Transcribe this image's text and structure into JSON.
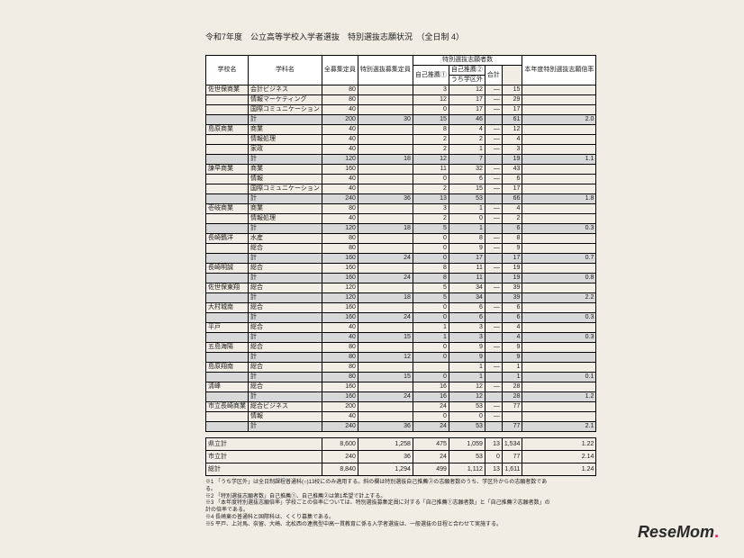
{
  "title": "令和7年度　公立高等学校入学者選抜　特別選抜志願状況　（全日制 4）",
  "header": {
    "school": "学校名",
    "dept": "学科名",
    "capacity": "全募集定員",
    "special_capacity": "特別選抜募集定員",
    "applicants_group": "特別選抜志願者数",
    "a1": "自己推薦①",
    "a2": "自己推薦②",
    "a2sub": "うち学区外",
    "gokei": "合計",
    "prev": "本年度特別選抜志願倍率"
  },
  "rows": [
    {
      "school": "佐世保商業",
      "dept": "会計ビジネス",
      "c": "80",
      "sc": "",
      "a1": "3",
      "a2": "12",
      "a2s": "—",
      "g": "15",
      "p": ""
    },
    {
      "school": "",
      "dept": "情報マーケティング",
      "c": "80",
      "sc": "",
      "a1": "12",
      "a2": "17",
      "a2s": "—",
      "g": "29",
      "p": ""
    },
    {
      "school": "",
      "dept": "国際コミュニケーション",
      "c": "40",
      "sc": "",
      "a1": "0",
      "a2": "17",
      "a2s": "—",
      "g": "17",
      "p": ""
    },
    {
      "school": "",
      "dept": "計",
      "c": "200",
      "sc": "30",
      "a1": "15",
      "a2": "46",
      "a2s": "",
      "g": "61",
      "p": "2.0",
      "subtotal": true
    },
    {
      "school": "島原商業",
      "dept": "商業",
      "c": "40",
      "sc": "",
      "a1": "8",
      "a2": "4",
      "a2s": "—",
      "g": "12",
      "p": ""
    },
    {
      "school": "",
      "dept": "情報処理",
      "c": "40",
      "sc": "",
      "a1": "2",
      "a2": "2",
      "a2s": "—",
      "g": "4",
      "p": ""
    },
    {
      "school": "",
      "dept": "家政",
      "c": "40",
      "sc": "",
      "a1": "2",
      "a2": "1",
      "a2s": "—",
      "g": "3",
      "p": ""
    },
    {
      "school": "",
      "dept": "計",
      "c": "120",
      "sc": "18",
      "a1": "12",
      "a2": "7",
      "a2s": "",
      "g": "19",
      "p": "1.1",
      "subtotal": true
    },
    {
      "school": "諫早商業",
      "dept": "商業",
      "c": "160",
      "sc": "",
      "a1": "11",
      "a2": "32",
      "a2s": "—",
      "g": "43",
      "p": ""
    },
    {
      "school": "",
      "dept": "情報",
      "c": "40",
      "sc": "",
      "a1": "0",
      "a2": "6",
      "a2s": "—",
      "g": "6",
      "p": ""
    },
    {
      "school": "",
      "dept": "国際コミュニケーション",
      "c": "40",
      "sc": "",
      "a1": "2",
      "a2": "15",
      "a2s": "—",
      "g": "17",
      "p": ""
    },
    {
      "school": "",
      "dept": "計",
      "c": "240",
      "sc": "36",
      "a1": "13",
      "a2": "53",
      "a2s": "",
      "g": "66",
      "p": "1.8",
      "subtotal": true
    },
    {
      "school": "壱岐商業",
      "dept": "商業",
      "c": "80",
      "sc": "",
      "a1": "3",
      "a2": "1",
      "a2s": "—",
      "g": "4",
      "p": ""
    },
    {
      "school": "",
      "dept": "情報処理",
      "c": "40",
      "sc": "",
      "a1": "2",
      "a2": "0",
      "a2s": "—",
      "g": "2",
      "p": ""
    },
    {
      "school": "",
      "dept": "計",
      "c": "120",
      "sc": "18",
      "a1": "5",
      "a2": "1",
      "a2s": "",
      "g": "6",
      "p": "0.3",
      "subtotal": true
    },
    {
      "school": "長崎鶴洋",
      "dept": "水産",
      "c": "80",
      "sc": "",
      "a1": "0",
      "a2": "8",
      "a2s": "—",
      "g": "8",
      "p": ""
    },
    {
      "school": "",
      "dept": "総合",
      "c": "80",
      "sc": "",
      "a1": "0",
      "a2": "9",
      "a2s": "—",
      "g": "9",
      "p": ""
    },
    {
      "school": "",
      "dept": "計",
      "c": "160",
      "sc": "24",
      "a1": "0",
      "a2": "17",
      "a2s": "",
      "g": "17",
      "p": "0.7",
      "subtotal": true
    },
    {
      "school": "長崎明誠",
      "dept": "総合",
      "c": "160",
      "sc": "",
      "a1": "8",
      "a2": "11",
      "a2s": "—",
      "g": "19",
      "p": ""
    },
    {
      "school": "",
      "dept": "計",
      "c": "160",
      "sc": "24",
      "a1": "8",
      "a2": "11",
      "a2s": "",
      "g": "19",
      "p": "0.8",
      "subtotal": true
    },
    {
      "school": "佐世保東翔",
      "dept": "総合",
      "c": "120",
      "sc": "",
      "a1": "5",
      "a2": "34",
      "a2s": "—",
      "g": "39",
      "p": ""
    },
    {
      "school": "",
      "dept": "計",
      "c": "120",
      "sc": "18",
      "a1": "5",
      "a2": "34",
      "a2s": "",
      "g": "39",
      "p": "2.2",
      "subtotal": true
    },
    {
      "school": "大村城南",
      "dept": "総合",
      "c": "160",
      "sc": "",
      "a1": "0",
      "a2": "6",
      "a2s": "—",
      "g": "6",
      "p": ""
    },
    {
      "school": "",
      "dept": "計",
      "c": "160",
      "sc": "24",
      "a1": "0",
      "a2": "6",
      "a2s": "",
      "g": "6",
      "p": "0.3",
      "subtotal": true
    },
    {
      "school": "平戸",
      "dept": "総合",
      "c": "40",
      "sc": "",
      "a1": "1",
      "a2": "3",
      "a2s": "—",
      "g": "4",
      "p": ""
    },
    {
      "school": "",
      "dept": "計",
      "c": "40",
      "sc": "15",
      "a1": "1",
      "a2": "3",
      "a2s": "",
      "g": "4",
      "p": "0.3",
      "subtotal": true
    },
    {
      "school": "五島海陽",
      "dept": "総合",
      "c": "80",
      "sc": "",
      "a1": "0",
      "a2": "9",
      "a2s": "—",
      "g": "9",
      "p": ""
    },
    {
      "school": "",
      "dept": "計",
      "c": "80",
      "sc": "12",
      "a1": "0",
      "a2": "9",
      "a2s": "",
      "g": "9",
      "p": "",
      "subtotal": true
    },
    {
      "school": "島原翔南",
      "dept": "総合",
      "c": "80",
      "sc": "",
      "a1": "",
      "a2": "1",
      "a2s": "—",
      "g": "1",
      "p": ""
    },
    {
      "school": "",
      "dept": "計",
      "c": "80",
      "sc": "15",
      "a1": "0",
      "a2": "1",
      "a2s": "",
      "g": "1",
      "p": "0.1",
      "subtotal": true
    },
    {
      "school": "清峰",
      "dept": "総合",
      "c": "160",
      "sc": "",
      "a1": "16",
      "a2": "12",
      "a2s": "—",
      "g": "28",
      "p": ""
    },
    {
      "school": "",
      "dept": "計",
      "c": "160",
      "sc": "24",
      "a1": "16",
      "a2": "12",
      "a2s": "",
      "g": "28",
      "p": "1.2",
      "subtotal": true
    },
    {
      "school": "市立長崎商業",
      "dept": "総合ビジネス",
      "c": "200",
      "sc": "",
      "a1": "24",
      "a2": "53",
      "a2s": "—",
      "g": "77",
      "p": ""
    },
    {
      "school": "",
      "dept": "情報",
      "c": "40",
      "sc": "",
      "a1": "0",
      "a2": "0",
      "a2s": "—",
      "g": "",
      "p": ""
    },
    {
      "school": "",
      "dept": "計",
      "c": "240",
      "sc": "36",
      "a1": "24",
      "a2": "53",
      "a2s": "",
      "g": "77",
      "p": "2.1",
      "subtotal": true
    }
  ],
  "totals": [
    {
      "label": "県立計",
      "c": "8,600",
      "sc": "1,258",
      "a1": "475",
      "a2": "1,059",
      "a2s": "13",
      "g": "1,534",
      "p": "1.22"
    },
    {
      "label": "市立計",
      "c": "240",
      "sc": "36",
      "a1": "24",
      "a2": "53",
      "a2s": "0",
      "g": "77",
      "p": "2.14"
    },
    {
      "label": "総計",
      "c": "8,840",
      "sc": "1,294",
      "a1": "499",
      "a2": "1,112",
      "a2s": "13",
      "g": "1,611",
      "p": "1.24"
    }
  ],
  "notes": [
    "※1 「うち学区外」は全日制課程普通科(○)13校にのみ適用する。斜の欄は特別選抜自己推薦②の志願者数のうち、学区外からの志願者数である。",
    "※2 「特別選抜志願者数」自己推薦①、自己推薦②は第1希望で計上する。",
    "※3 「本年度特別選抜志願倍率」学校ごとの倍率については、特別選抜募集定員に対する「自己推薦①志願者数」と「自己推薦②志願者数」の計の倍率である。",
    "※4 長崎東の普通科と国際科は、くくり募集である。",
    "※5 平戸、上対馬、奈留、大崎、北松西の連携型中高一貫教育に係る入学者選抜は、一般選抜の日程と合わせて実施する。"
  ],
  "logo": {
    "text": "ReseMom",
    "accent": "."
  }
}
